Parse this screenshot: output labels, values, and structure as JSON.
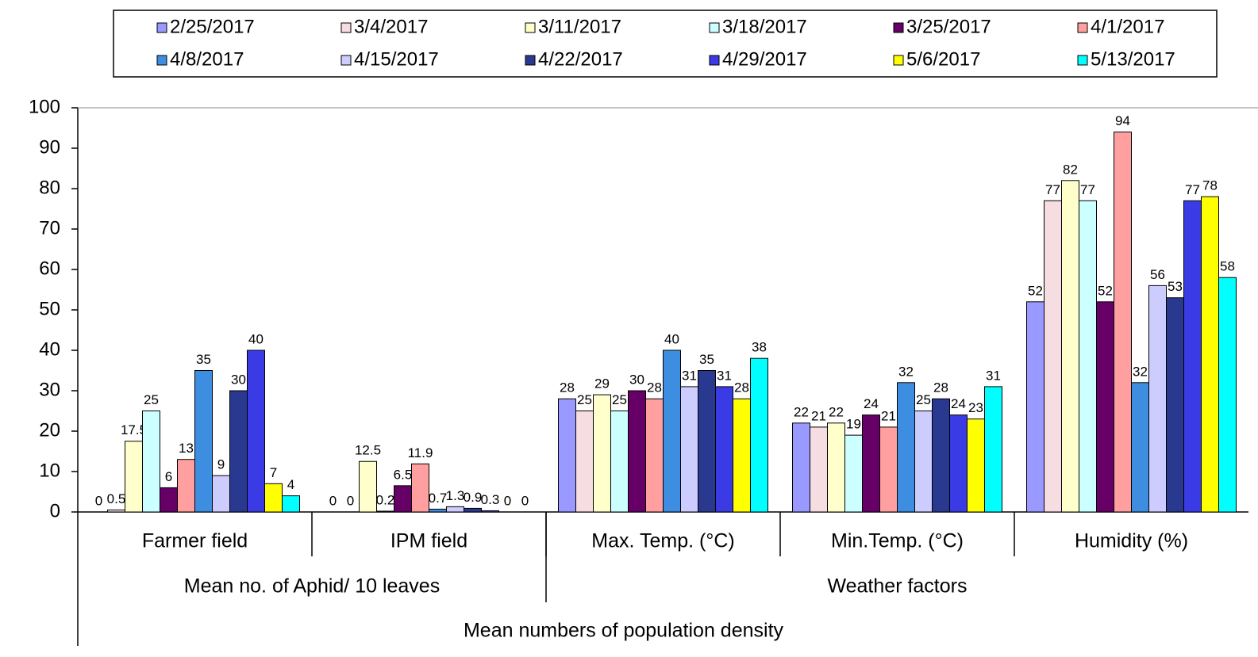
{
  "chart_data": {
    "type": "bar",
    "categories": [
      "Farmer field",
      "IPM field",
      "Max. Temp. (°C)",
      "Min.Temp.  (°C)",
      "Humidity (%)"
    ],
    "category_groups": [
      {
        "label": "Mean no. of Aphid/ 10 leaves",
        "span": 2
      },
      {
        "label": "Weather factors",
        "span": 3
      }
    ],
    "x_label": "Mean numbers of population density",
    "series": [
      {
        "name": "2/25/2017",
        "color": "#9999ff",
        "values": [
          0,
          0,
          28,
          22,
          52
        ]
      },
      {
        "name": "3/4/2017",
        "color": "#f6dde2",
        "values": [
          0.5,
          0,
          25,
          21,
          77
        ]
      },
      {
        "name": "3/11/2017",
        "color": "#ffffcc",
        "values": [
          17.5,
          12.5,
          29,
          22,
          82
        ]
      },
      {
        "name": "3/18/2017",
        "color": "#ccffff",
        "values": [
          25,
          0.2,
          25,
          19,
          77
        ]
      },
      {
        "name": "3/25/2017",
        "color": "#660066",
        "values": [
          6,
          6.5,
          30,
          24,
          52
        ]
      },
      {
        "name": "4/1/2017",
        "color": "#ff9f9f",
        "values": [
          13,
          11.9,
          28,
          21,
          94
        ]
      },
      {
        "name": "4/8/2017",
        "color": "#3d8ee0",
        "values": [
          35,
          0.7,
          40,
          32,
          32
        ]
      },
      {
        "name": "4/15/2017",
        "color": "#ccccff",
        "values": [
          9,
          1.3,
          31,
          25,
          56
        ]
      },
      {
        "name": "4/22/2017",
        "color": "#2a3990",
        "values": [
          30,
          0.9,
          35,
          28,
          53
        ]
      },
      {
        "name": "4/29/2017",
        "color": "#3b3be6",
        "values": [
          40,
          0.3,
          31,
          24,
          77
        ]
      },
      {
        "name": "5/6/2017",
        "color": "#ffff00",
        "values": [
          7,
          0,
          28,
          23,
          78
        ]
      },
      {
        "name": "5/13/2017",
        "color": "#00ffff",
        "values": [
          4,
          0,
          38,
          31,
          58
        ]
      }
    ],
    "ylim": [
      0,
      100
    ],
    "yticks": [
      0,
      10,
      20,
      30,
      40,
      50,
      60,
      70,
      80,
      90,
      100
    ]
  }
}
